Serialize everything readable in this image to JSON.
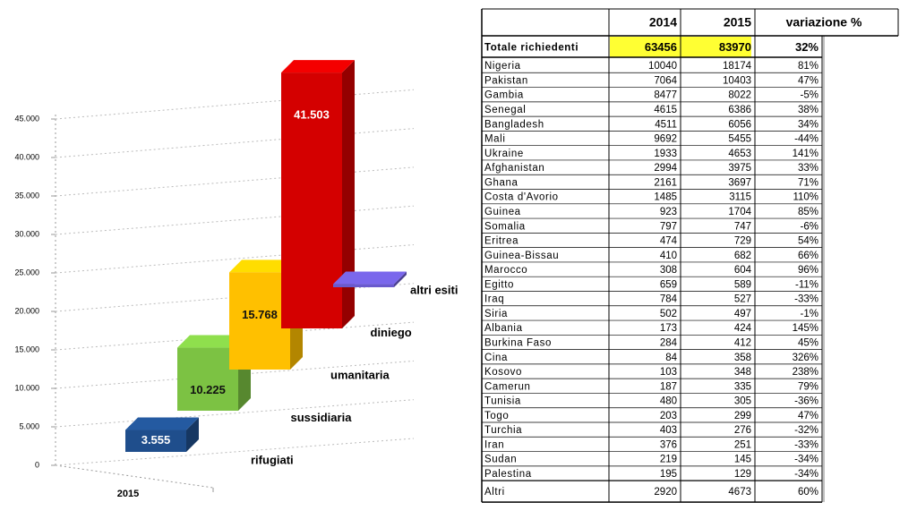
{
  "chart_data": {
    "type": "bar3d",
    "x_label": "2015",
    "categories": [
      "rifugiati",
      "sussidiaria",
      "umanitaria",
      "diniego",
      "altri esiti"
    ],
    "values": [
      3555,
      10225,
      15768,
      41503,
      500
    ],
    "value_labels": [
      "3.555",
      "10.225",
      "15.768",
      "41.503",
      null
    ],
    "colors": [
      "#1f4e8c",
      "#7cc243",
      "#ffc000",
      "#d40000",
      "#6a5acd"
    ],
    "ylim": [
      0,
      45000
    ],
    "yticks": [
      0,
      {
        "value": 5000,
        "label": "5.000"
      },
      {
        "value": 10000,
        "label": "10.000"
      },
      {
        "value": 15000,
        "label": "15.000"
      },
      {
        "value": 20000,
        "label": "20.000"
      },
      {
        "value": 25000,
        "label": "25.000"
      },
      {
        "value": 30000,
        "label": "30.000"
      },
      {
        "value": 35000,
        "label": "35.000"
      },
      {
        "value": 40000,
        "label": "40.000"
      },
      {
        "value": 45000,
        "label": "45.000"
      }
    ],
    "grid": true
  },
  "table": {
    "header": [
      "2014",
      "2015",
      "variazione %"
    ],
    "total": [
      "Totale richiedenti",
      "63456",
      "83970",
      "32%"
    ],
    "rows": [
      [
        "Nigeria",
        "10040",
        "18174",
        "81%"
      ],
      [
        "Pakistan",
        "7064",
        "10403",
        "47%"
      ],
      [
        "Gambia",
        "8477",
        "8022",
        "-5%"
      ],
      [
        "Senegal",
        "4615",
        "6386",
        "38%"
      ],
      [
        "Bangladesh",
        "4511",
        "6056",
        "34%"
      ],
      [
        "Mali",
        "9692",
        "5455",
        "-44%"
      ],
      [
        "Ukraine",
        "1933",
        "4653",
        "141%"
      ],
      [
        "Afghanistan",
        "2994",
        "3975",
        "33%"
      ],
      [
        "Ghana",
        "2161",
        "3697",
        "71%"
      ],
      [
        "Costa d'Avorio",
        "1485",
        "3115",
        "110%"
      ],
      [
        "Guinea",
        "923",
        "1704",
        "85%"
      ],
      [
        "Somalia",
        "797",
        "747",
        "-6%"
      ],
      [
        "Eritrea",
        "474",
        "729",
        "54%"
      ],
      [
        "Guinea-Bissau",
        "410",
        "682",
        "66%"
      ],
      [
        "Marocco",
        "308",
        "604",
        "96%"
      ],
      [
        "Egitto",
        "659",
        "589",
        "-11%"
      ],
      [
        "Iraq",
        "784",
        "527",
        "-33%"
      ],
      [
        "Siria",
        "502",
        "497",
        "-1%"
      ],
      [
        "Albania",
        "173",
        "424",
        "145%"
      ],
      [
        "Burkina Faso",
        "284",
        "412",
        "45%"
      ],
      [
        "Cina",
        "84",
        "358",
        "326%"
      ],
      [
        "Kosovo",
        "103",
        "348",
        "238%"
      ],
      [
        "Camerun",
        "187",
        "335",
        "79%"
      ],
      [
        "Tunisia",
        "480",
        "305",
        "-36%"
      ],
      [
        "Togo",
        "203",
        "299",
        "47%"
      ],
      [
        "Turchia",
        "403",
        "276",
        "-32%"
      ],
      [
        "Iran",
        "376",
        "251",
        "-33%"
      ],
      [
        "Sudan",
        "219",
        "145",
        "-34%"
      ],
      [
        "Palestina",
        "195",
        "129",
        "-34%"
      ]
    ],
    "other": [
      "Altri",
      "2920",
      "4673",
      "60%"
    ]
  }
}
